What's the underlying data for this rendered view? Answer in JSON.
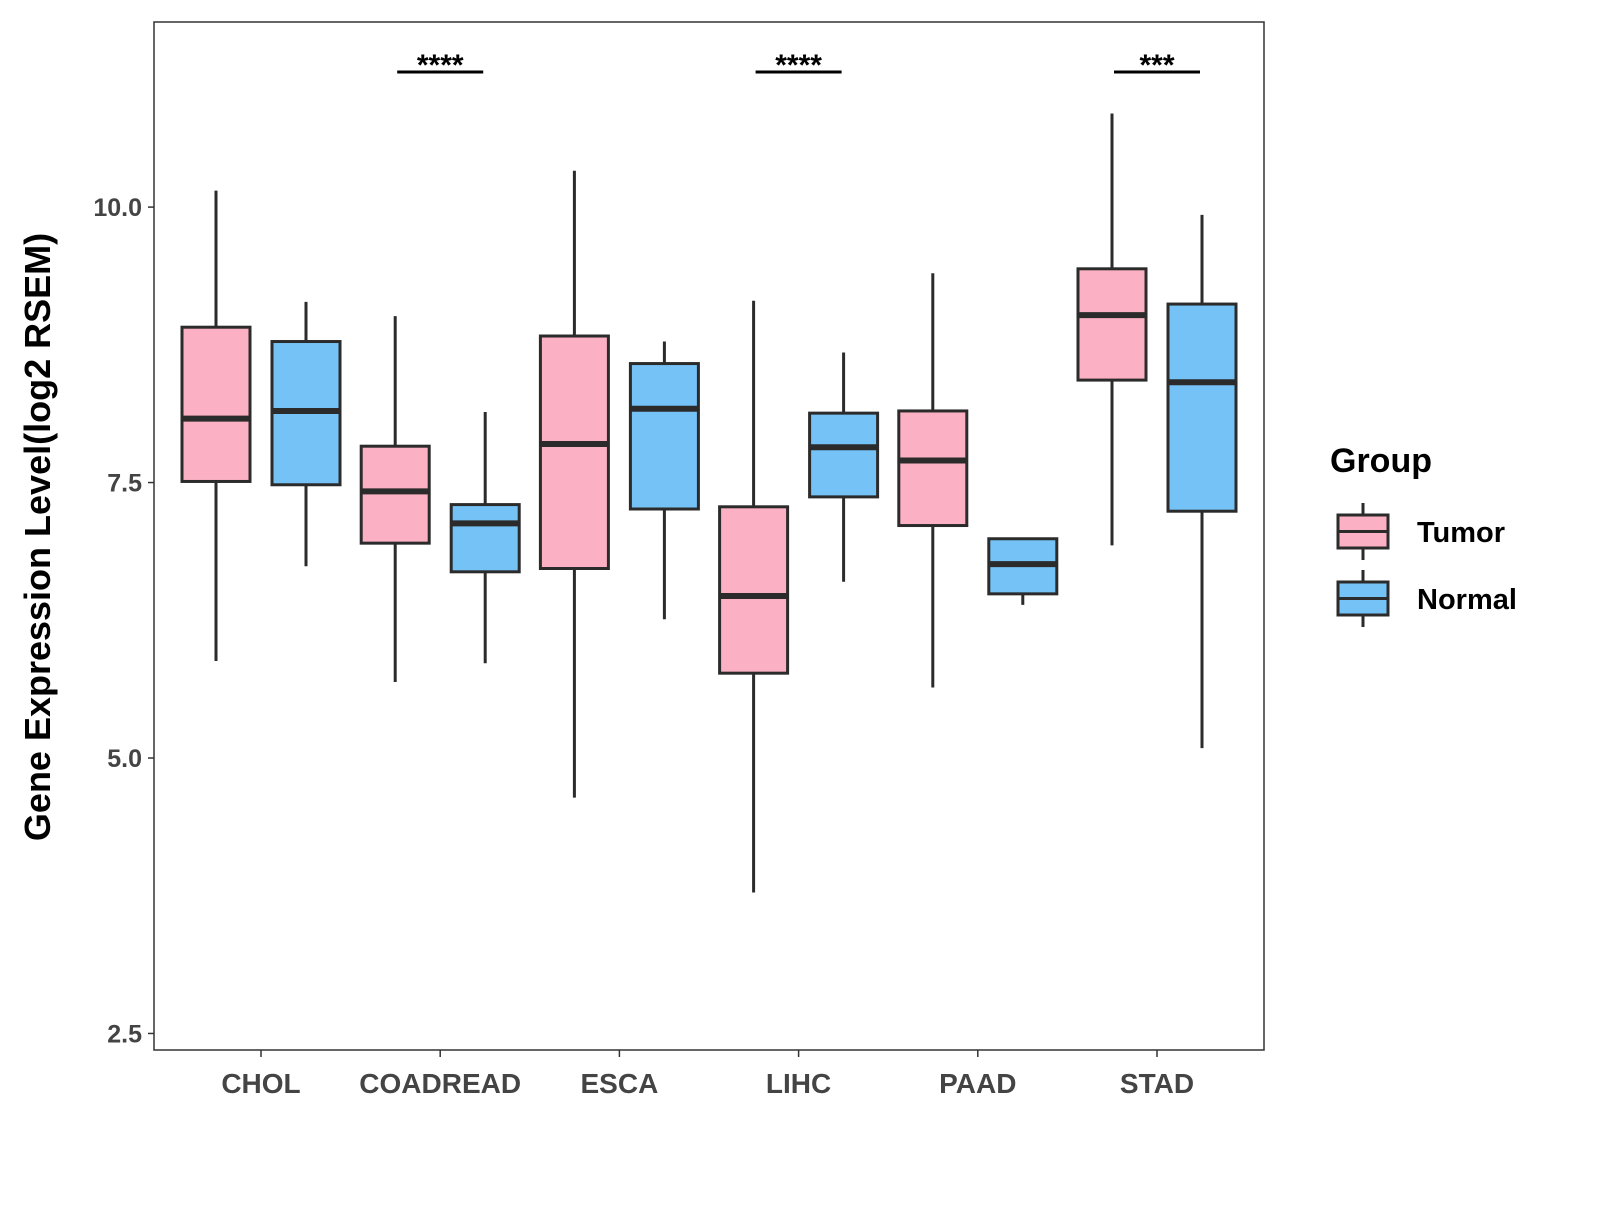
{
  "chart_data": {
    "type": "boxplot",
    "title": "",
    "xlabel": "",
    "ylabel": "Gene Expression Level(log2 RSEM)",
    "ylim": [
      2.35,
      11.68
    ],
    "yticks": [
      "2.5",
      "5.0",
      "7.5",
      "10.0"
    ],
    "categories": [
      "CHOL",
      "COADREAD",
      "ESCA",
      "LIHC",
      "PAAD",
      "STAD"
    ],
    "legend": {
      "title": "Group",
      "position": "right",
      "entries": [
        "Tumor",
        "Normal"
      ]
    },
    "colors": {
      "Tumor": "#FBB1C3",
      "Normal": "#75C2F6",
      "line": "#2b2b2b"
    },
    "series": [
      {
        "name": "Tumor",
        "boxes": [
          {
            "whisker_low": 5.88,
            "q1": 7.51,
            "median": 8.08,
            "q3": 8.91,
            "whisker_high": 10.15
          },
          {
            "whisker_low": 5.69,
            "q1": 6.95,
            "median": 7.42,
            "q3": 7.83,
            "whisker_high": 9.01
          },
          {
            "whisker_low": 4.64,
            "q1": 6.72,
            "median": 7.85,
            "q3": 8.83,
            "whisker_high": 10.33
          },
          {
            "whisker_low": 3.78,
            "q1": 5.77,
            "median": 6.47,
            "q3": 7.28,
            "whisker_high": 9.15
          },
          {
            "whisker_low": 5.64,
            "q1": 7.11,
            "median": 7.7,
            "q3": 8.15,
            "whisker_high": 9.4
          },
          {
            "whisker_low": 6.93,
            "q1": 8.43,
            "median": 9.02,
            "q3": 9.44,
            "whisker_high": 10.85
          }
        ]
      },
      {
        "name": "Normal",
        "boxes": [
          {
            "whisker_low": 6.74,
            "q1": 7.48,
            "median": 8.15,
            "q3": 8.78,
            "whisker_high": 9.14
          },
          {
            "whisker_low": 5.86,
            "q1": 6.69,
            "median": 7.13,
            "q3": 7.3,
            "whisker_high": 8.14
          },
          {
            "whisker_low": 6.26,
            "q1": 7.26,
            "median": 8.17,
            "q3": 8.58,
            "whisker_high": 8.78
          },
          {
            "whisker_low": 6.6,
            "q1": 7.37,
            "median": 7.82,
            "q3": 8.13,
            "whisker_high": 8.68
          },
          {
            "whisker_low": 6.39,
            "q1": 6.49,
            "median": 6.76,
            "q3": 6.99,
            "whisker_high": 7.0
          },
          {
            "whisker_low": 5.09,
            "q1": 7.24,
            "median": 8.41,
            "q3": 9.12,
            "whisker_high": 9.93
          }
        ]
      }
    ],
    "annotations": [
      {
        "category": "COADREAD",
        "label": "****"
      },
      {
        "category": "LIHC",
        "label": "****"
      },
      {
        "category": "STAD",
        "label": "***"
      }
    ]
  }
}
